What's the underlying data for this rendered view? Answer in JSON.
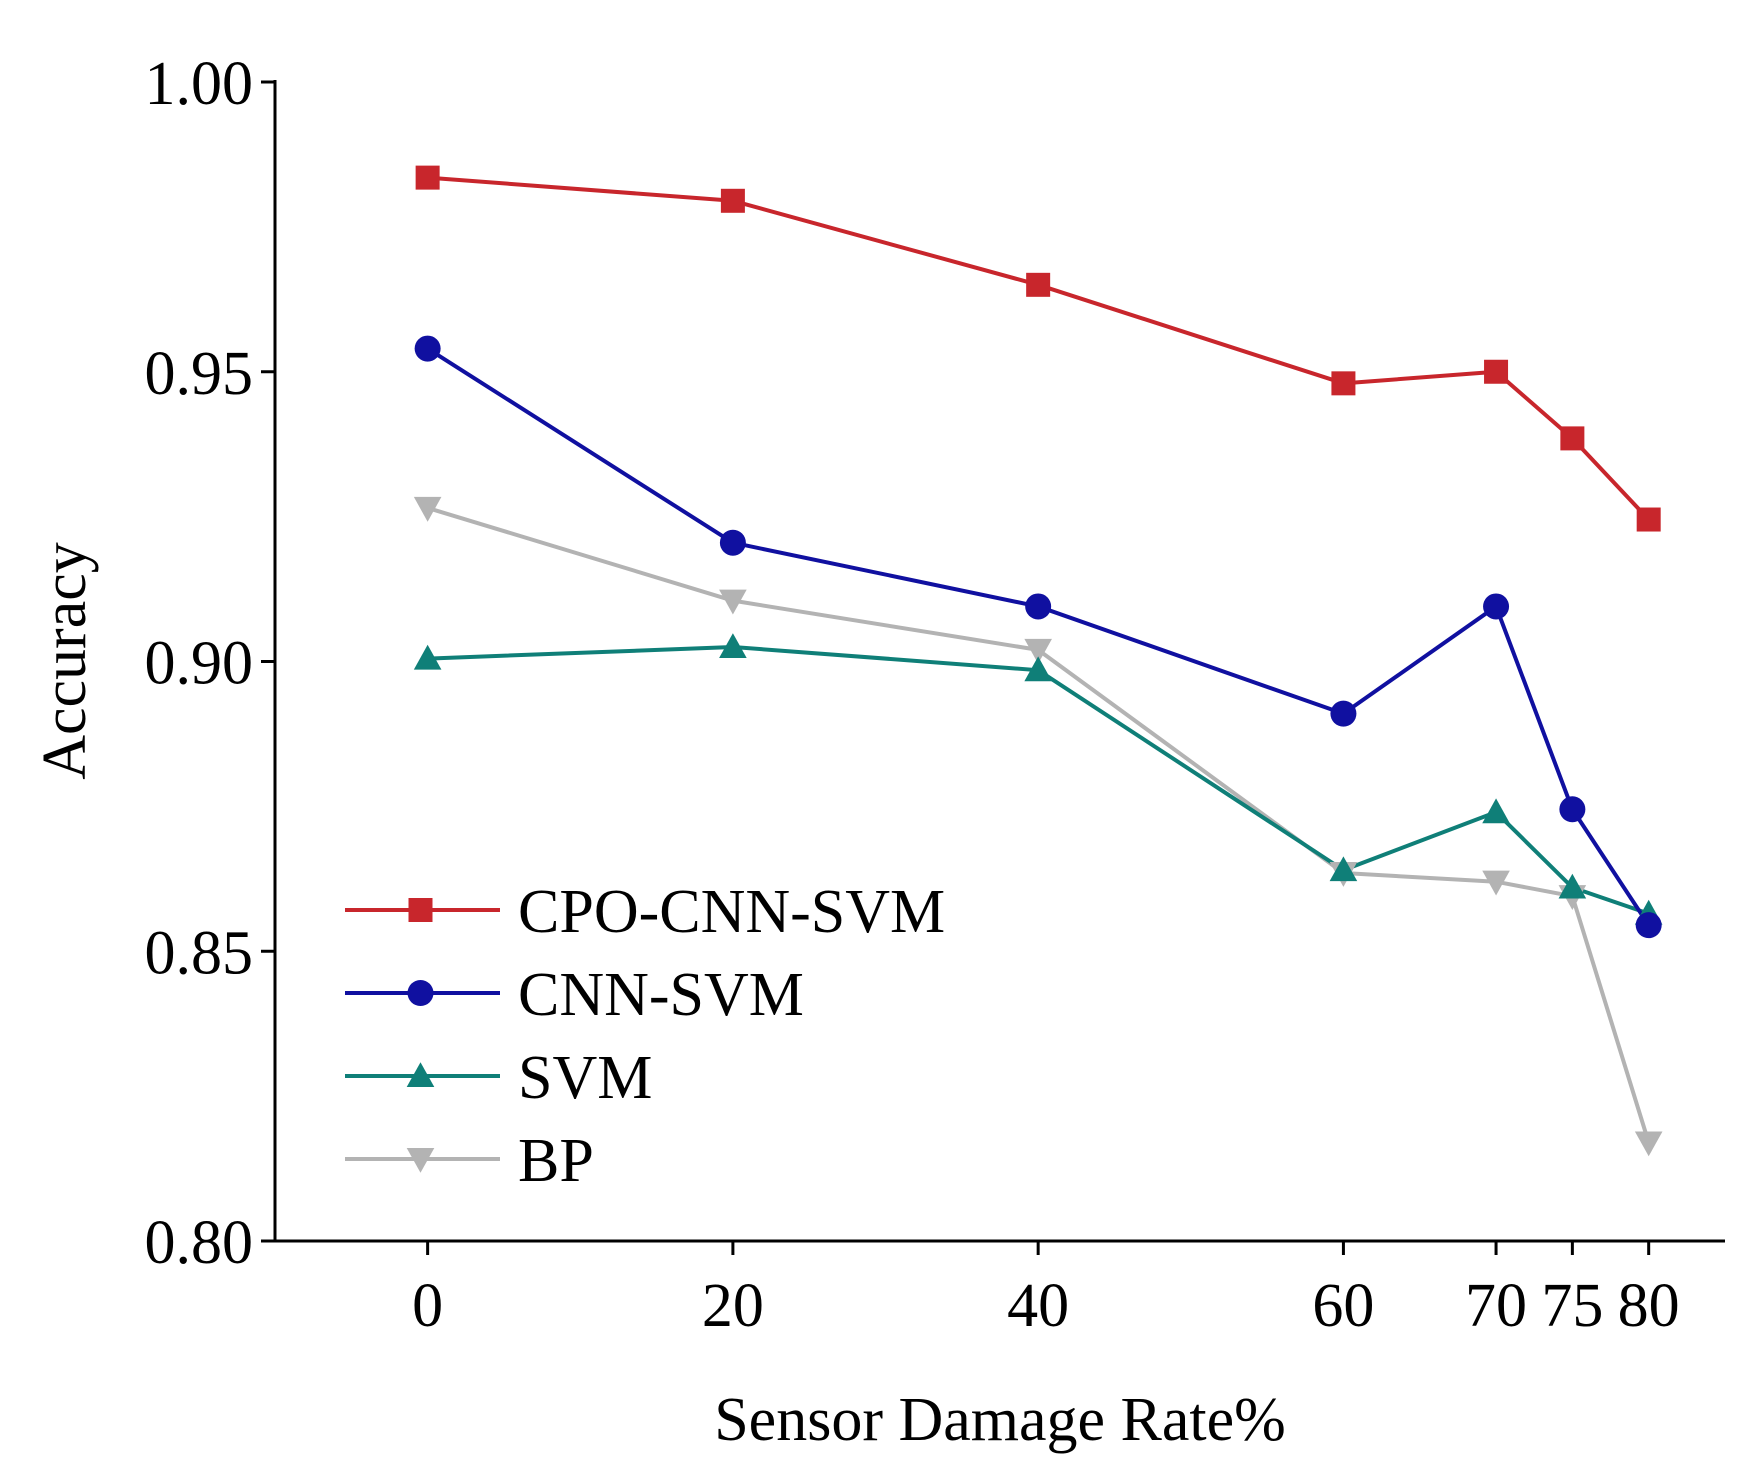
{
  "chart_data": {
    "type": "line",
    "title": "",
    "xlabel": "Sensor Damage Rate%",
    "ylabel": "Accuracy",
    "x": [
      0,
      20,
      40,
      60,
      70,
      75,
      80
    ],
    "x_tick_labels": [
      "0",
      "20",
      "40",
      "60",
      "70",
      "75",
      "80"
    ],
    "y_tick_labels": [
      "0.80",
      "0.85",
      "0.90",
      "0.95",
      "1.00"
    ],
    "y_ticks": [
      0.8,
      0.85,
      0.9,
      0.95,
      1.0
    ],
    "xlim": [
      -10,
      85
    ],
    "ylim": [
      0.8,
      1.0
    ],
    "grid": false,
    "legend_position": "bottom-left",
    "series": [
      {
        "name": "CPO-CNN-SVM",
        "color": "#c8262c",
        "marker": "square",
        "values": [
          0.9835,
          0.9795,
          0.965,
          0.948,
          0.95,
          0.9385,
          0.9245
        ]
      },
      {
        "name": "CNN-SVM",
        "color": "#1010a0",
        "marker": "circle",
        "values": [
          0.954,
          0.9205,
          0.9095,
          0.891,
          0.9095,
          0.8745,
          0.8545
        ]
      },
      {
        "name": "SVM",
        "color": "#0f7f78",
        "marker": "triangle-up",
        "values": [
          0.9005,
          0.9025,
          0.8985,
          0.864,
          0.874,
          0.861,
          0.8565
        ]
      },
      {
        "name": "BP",
        "color": "#b3b3b3",
        "marker": "triangle-down",
        "values": [
          0.9265,
          0.9105,
          0.902,
          0.8635,
          0.862,
          0.8595,
          0.817
        ]
      }
    ]
  }
}
